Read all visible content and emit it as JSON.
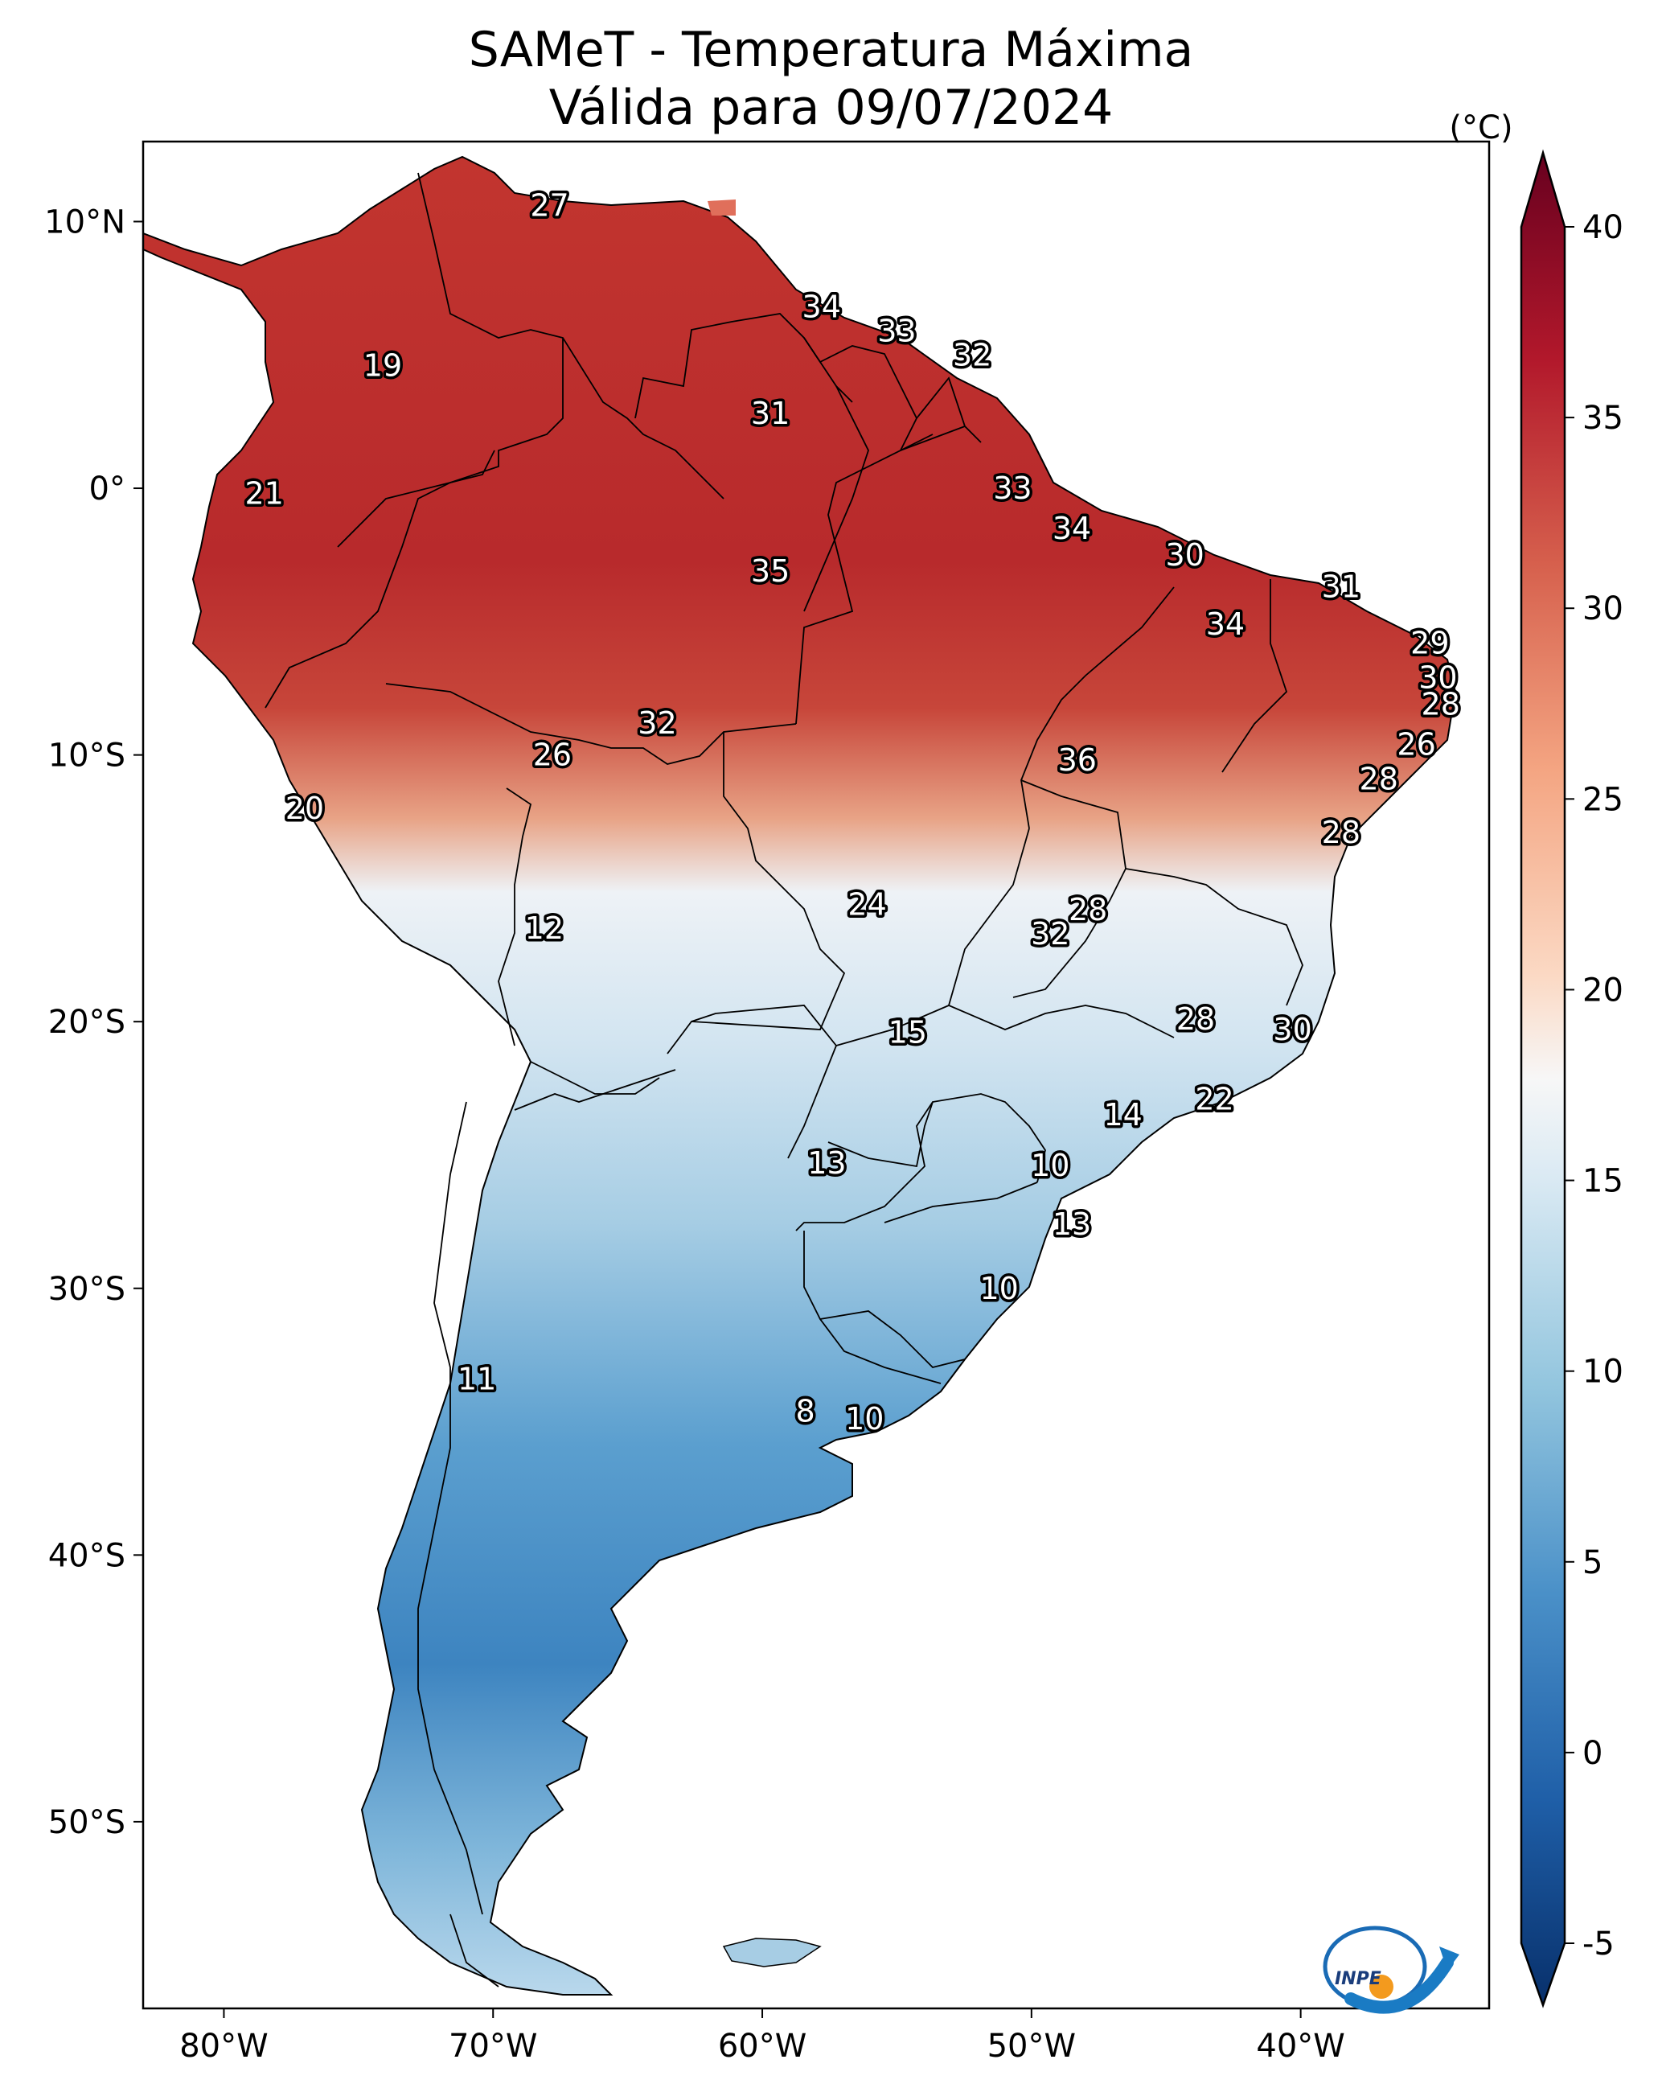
{
  "title": {
    "line1": "SAMeT - Temperatura Máxima",
    "line2": "Válida para 09/07/2024"
  },
  "map": {
    "lon_range": [
      -83,
      -33
    ],
    "lat_range": [
      -57,
      13
    ],
    "x_ticks": [
      {
        "lon": -80,
        "label": "80°W"
      },
      {
        "lon": -70,
        "label": "70°W"
      },
      {
        "lon": -60,
        "label": "60°W"
      },
      {
        "lon": -50,
        "label": "50°W"
      },
      {
        "lon": -40,
        "label": "40°W"
      }
    ],
    "y_ticks": [
      {
        "lat": 10,
        "label": "10°N"
      },
      {
        "lat": 0,
        "label": "0°"
      },
      {
        "lat": -10,
        "label": "10°S"
      },
      {
        "lat": -20,
        "label": "20°S"
      },
      {
        "lat": -30,
        "label": "30°S"
      },
      {
        "lat": -40,
        "label": "40°S"
      },
      {
        "lat": -50,
        "label": "50°S"
      }
    ],
    "station_labels": [
      {
        "text": "27",
        "lon": -67.9,
        "lat": 10.6
      },
      {
        "text": "34",
        "lon": -57.8,
        "lat": 6.8
      },
      {
        "text": "33",
        "lon": -55.0,
        "lat": 5.9
      },
      {
        "text": "32",
        "lon": -52.2,
        "lat": 5.0
      },
      {
        "text": "19",
        "lon": -74.1,
        "lat": 4.6
      },
      {
        "text": "31",
        "lon": -59.7,
        "lat": 2.8
      },
      {
        "text": "21",
        "lon": -78.5,
        "lat": -0.2
      },
      {
        "text": "33",
        "lon": -50.7,
        "lat": 0.0
      },
      {
        "text": "34",
        "lon": -48.5,
        "lat": -1.5
      },
      {
        "text": "35",
        "lon": -59.7,
        "lat": -3.1
      },
      {
        "text": "30",
        "lon": -44.3,
        "lat": -2.5
      },
      {
        "text": "31",
        "lon": -38.5,
        "lat": -3.7
      },
      {
        "text": "34",
        "lon": -42.8,
        "lat": -5.1
      },
      {
        "text": "29",
        "lon": -35.2,
        "lat": -5.8
      },
      {
        "text": "30",
        "lon": -34.9,
        "lat": -7.1
      },
      {
        "text": "28",
        "lon": -34.8,
        "lat": -8.1
      },
      {
        "text": "32",
        "lon": -63.9,
        "lat": -8.8
      },
      {
        "text": "26",
        "lon": -67.8,
        "lat": -10.0
      },
      {
        "text": "36",
        "lon": -48.3,
        "lat": -10.2
      },
      {
        "text": "26",
        "lon": -35.7,
        "lat": -9.6
      },
      {
        "text": "28",
        "lon": -37.1,
        "lat": -10.9
      },
      {
        "text": "20",
        "lon": -77.0,
        "lat": -12.0
      },
      {
        "text": "28",
        "lon": -38.5,
        "lat": -12.9
      },
      {
        "text": "24",
        "lon": -56.1,
        "lat": -15.6
      },
      {
        "text": "28",
        "lon": -47.9,
        "lat": -15.8
      },
      {
        "text": "32",
        "lon": -49.3,
        "lat": -16.7
      },
      {
        "text": "12",
        "lon": -68.1,
        "lat": -16.5
      },
      {
        "text": "15",
        "lon": -54.6,
        "lat": -20.4
      },
      {
        "text": "28",
        "lon": -43.9,
        "lat": -19.9
      },
      {
        "text": "30",
        "lon": -40.3,
        "lat": -20.3
      },
      {
        "text": "22",
        "lon": -43.2,
        "lat": -22.9
      },
      {
        "text": "14",
        "lon": -46.6,
        "lat": -23.5
      },
      {
        "text": "13",
        "lon": -57.6,
        "lat": -25.3
      },
      {
        "text": "10",
        "lon": -49.3,
        "lat": -25.4
      },
      {
        "text": "13",
        "lon": -48.5,
        "lat": -27.6
      },
      {
        "text": "10",
        "lon": -51.2,
        "lat": -30.0
      },
      {
        "text": "11",
        "lon": -70.6,
        "lat": -33.4
      },
      {
        "text": "8",
        "lon": -58.4,
        "lat": -34.6
      },
      {
        "text": "10",
        "lon": -56.2,
        "lat": -34.9
      }
    ]
  },
  "colorbar": {
    "unit": "(°C)",
    "range": [
      -5,
      40
    ],
    "ticks": [
      {
        "value": 40,
        "label": "40"
      },
      {
        "value": 35,
        "label": "35"
      },
      {
        "value": 30,
        "label": "30"
      },
      {
        "value": 25,
        "label": "25"
      },
      {
        "value": 20,
        "label": "20"
      },
      {
        "value": 15,
        "label": "15"
      },
      {
        "value": 10,
        "label": "10"
      },
      {
        "value": 5,
        "label": "5"
      },
      {
        "value": 0,
        "label": "0"
      },
      {
        "value": -5,
        "label": "-5"
      }
    ],
    "stops": [
      {
        "value": -5,
        "color": "#08306b"
      },
      {
        "value": 0,
        "color": "#1f5fa8"
      },
      {
        "value": 5,
        "color": "#4a90c8"
      },
      {
        "value": 10,
        "color": "#92c5de"
      },
      {
        "value": 15,
        "color": "#d9e9f3"
      },
      {
        "value": 17.5,
        "color": "#f7f7f7"
      },
      {
        "value": 20,
        "color": "#fbd9c4"
      },
      {
        "value": 25,
        "color": "#f4a582"
      },
      {
        "value": 30,
        "color": "#d6604d"
      },
      {
        "value": 35,
        "color": "#b2182b"
      },
      {
        "value": 40,
        "color": "#67001f"
      }
    ]
  },
  "logo": {
    "text": "INPE"
  }
}
